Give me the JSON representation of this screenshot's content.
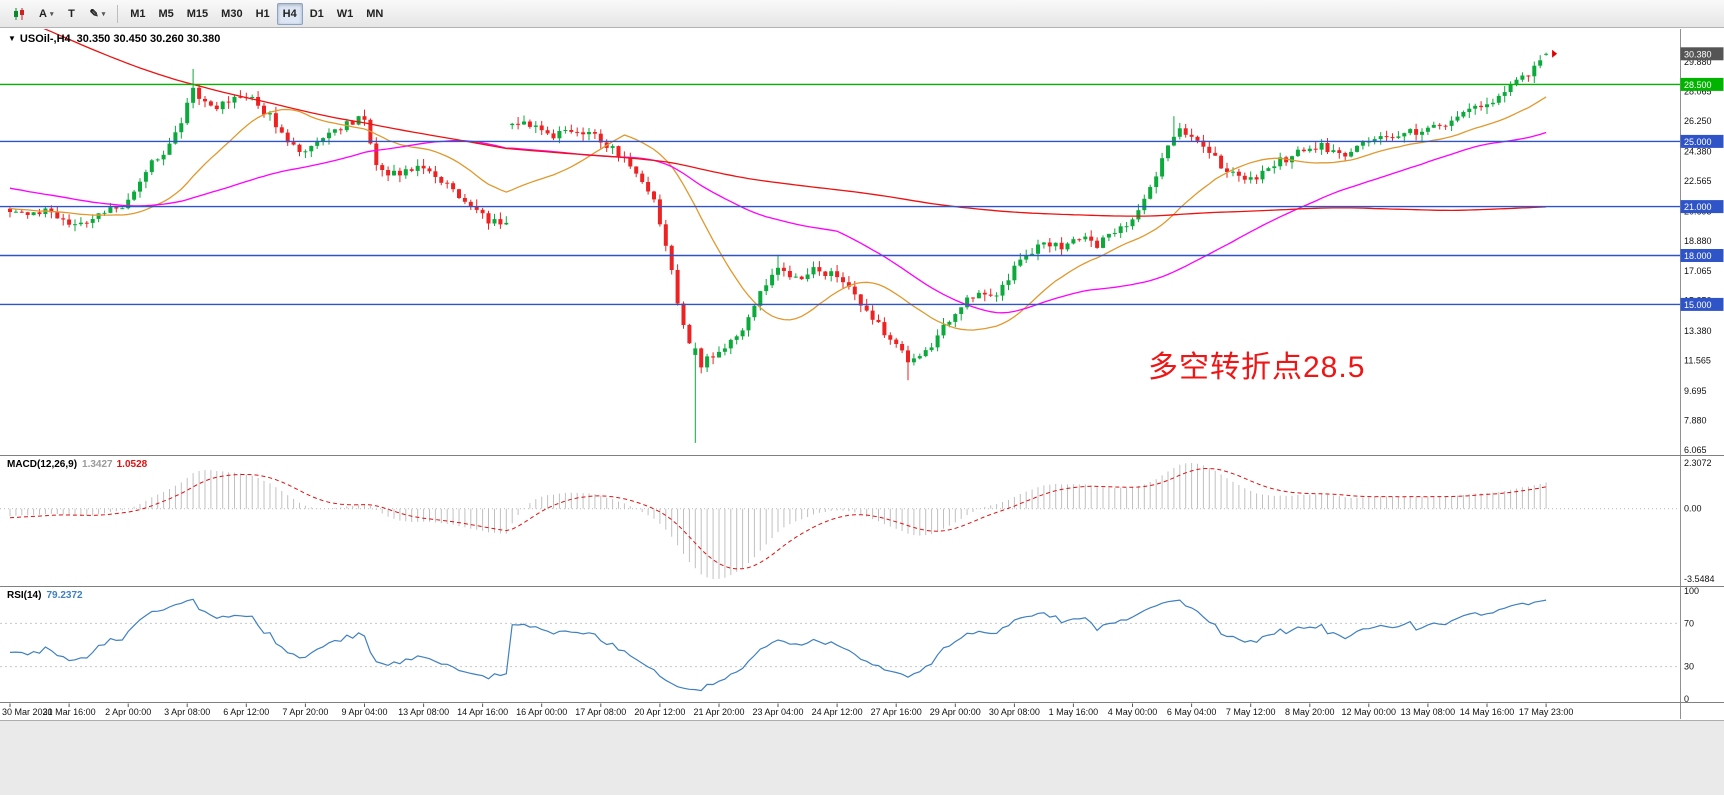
{
  "toolbar": {
    "tools": [
      {
        "name": "candlestick-chart",
        "glyph": "icon-candles",
        "caret": false
      },
      {
        "name": "text-label-tool",
        "glyph": "A",
        "caret": true
      },
      {
        "name": "text-tool",
        "glyph": "T",
        "caret": false
      },
      {
        "name": "drawing-tool",
        "glyph": "✎",
        "caret": true
      }
    ],
    "timeframes": [
      "M1",
      "M5",
      "M15",
      "M30",
      "H1",
      "H4",
      "D1",
      "W1",
      "MN"
    ],
    "active_timeframe": "H4"
  },
  "chart": {
    "collapse_marker": "▼",
    "title": "USOil-,H4",
    "ohlc": "30.350 30.450 30.260 30.380",
    "annotation": {
      "text": "多空转折点28.5",
      "color": "#f01414"
    }
  },
  "chart_data": {
    "type": "candlestick",
    "symbol": "USOil-",
    "timeframe": "H4",
    "bars": 261,
    "price_range": {
      "top": 31.9,
      "bottom": 5.76
    },
    "colors": {
      "up": "#0caa3c",
      "down": "#ee2222"
    },
    "h_lines": [
      {
        "price": 28.5,
        "color": "#00b400",
        "tag": "28.500"
      },
      {
        "price": 25.0,
        "color": "#2f54c8",
        "tag": "25.000"
      },
      {
        "price": 21.0,
        "color": "#2f54c8",
        "tag": "21.000"
      },
      {
        "price": 18.0,
        "color": "#2f54c8",
        "tag": "18.000"
      },
      {
        "price": 15.0,
        "color": "#2f54c8",
        "tag": "15.000"
      }
    ],
    "current_price_tag": {
      "text": "30.380",
      "price": 30.38,
      "color": "#555555"
    },
    "price_axis_labels": [
      "29.880",
      "28.065",
      "26.250",
      "24.380",
      "22.565",
      "20.695",
      "18.880",
      "17.065",
      "15.250",
      "13.380",
      "11.565",
      "9.695",
      "7.880",
      "6.065"
    ],
    "time_labels": [
      {
        "i": 0,
        "text": "30 Mar 2020"
      },
      {
        "i": 10,
        "text": "31 Mar 16:00"
      },
      {
        "i": 20,
        "text": "2 Apr 00:00"
      },
      {
        "i": 30,
        "text": "3 Apr 08:00"
      },
      {
        "i": 40,
        "text": "6 Apr 12:00"
      },
      {
        "i": 50,
        "text": "7 Apr 20:00"
      },
      {
        "i": 60,
        "text": "9 Apr 04:00"
      },
      {
        "i": 70,
        "text": "13 Apr 08:00"
      },
      {
        "i": 80,
        "text": "14 Apr 16:00"
      },
      {
        "i": 90,
        "text": "16 Apr 00:00"
      },
      {
        "i": 100,
        "text": "17 Apr 08:00"
      },
      {
        "i": 110,
        "text": "20 Apr 12:00"
      },
      {
        "i": 120,
        "text": "21 Apr 20:00"
      },
      {
        "i": 130,
        "text": "23 Apr 04:00"
      },
      {
        "i": 140,
        "text": "24 Apr 12:00"
      },
      {
        "i": 150,
        "text": "27 Apr 16:00"
      },
      {
        "i": 160,
        "text": "29 Apr 00:00"
      },
      {
        "i": 170,
        "text": "30 Apr 08:00"
      },
      {
        "i": 180,
        "text": "1 May 16:00"
      },
      {
        "i": 190,
        "text": "4 May 00:00"
      },
      {
        "i": 200,
        "text": "6 May 04:00"
      },
      {
        "i": 210,
        "text": "7 May 12:00"
      },
      {
        "i": 220,
        "text": "8 May 20:00"
      },
      {
        "i": 230,
        "text": "12 May 00:00"
      },
      {
        "i": 240,
        "text": "13 May 08:00"
      },
      {
        "i": 250,
        "text": "14 May 16:00"
      },
      {
        "i": 260,
        "text": "17 May 23:00"
      }
    ],
    "price_path": [
      [
        0,
        20.9
      ],
      [
        3,
        20.4
      ],
      [
        6,
        20.8
      ],
      [
        9,
        20.1
      ],
      [
        12,
        19.8
      ],
      [
        15,
        20.5
      ],
      [
        18,
        20.9
      ],
      [
        20,
        21.2
      ],
      [
        23,
        23.2
      ],
      [
        26,
        24.4
      ],
      [
        28,
        25.4
      ],
      [
        30,
        27.2
      ],
      [
        31,
        28.3
      ],
      [
        33,
        27.3
      ],
      [
        35,
        27.0
      ],
      [
        38,
        27.8
      ],
      [
        41,
        27.5
      ],
      [
        44,
        26.5
      ],
      [
        47,
        25.0
      ],
      [
        50,
        24.2
      ],
      [
        53,
        25.1
      ],
      [
        56,
        25.9
      ],
      [
        59,
        26.4
      ],
      [
        60,
        26.5
      ],
      [
        62,
        23.4
      ],
      [
        64,
        22.9
      ],
      [
        67,
        23.1
      ],
      [
        70,
        23.4
      ],
      [
        73,
        22.6
      ],
      [
        76,
        21.6
      ],
      [
        78,
        21.0
      ],
      [
        81,
        20.2
      ],
      [
        84,
        19.9
      ],
      [
        85,
        26.3
      ],
      [
        88,
        26.1
      ],
      [
        92,
        25.4
      ],
      [
        96,
        25.7
      ],
      [
        100,
        25.1
      ],
      [
        103,
        24.3
      ],
      [
        106,
        23.1
      ],
      [
        109,
        21.3
      ],
      [
        111,
        18.6
      ],
      [
        113,
        15.2
      ],
      [
        115,
        12.6
      ],
      [
        116,
        11.0
      ],
      [
        118,
        11.6
      ],
      [
        121,
        12.2
      ],
      [
        124,
        13.4
      ],
      [
        127,
        15.8
      ],
      [
        130,
        17.3
      ],
      [
        133,
        16.6
      ],
      [
        136,
        17.1
      ],
      [
        139,
        16.8
      ],
      [
        142,
        15.9
      ],
      [
        145,
        14.6
      ],
      [
        148,
        13.3
      ],
      [
        150,
        12.6
      ],
      [
        152,
        11.3
      ],
      [
        155,
        12.1
      ],
      [
        158,
        13.6
      ],
      [
        161,
        14.9
      ],
      [
        164,
        15.9
      ],
      [
        166,
        15.3
      ],
      [
        169,
        16.7
      ],
      [
        172,
        18.0
      ],
      [
        175,
        18.8
      ],
      [
        178,
        18.5
      ],
      [
        181,
        19.1
      ],
      [
        184,
        18.7
      ],
      [
        187,
        19.4
      ],
      [
        190,
        20.3
      ],
      [
        193,
        22.0
      ],
      [
        196,
        24.6
      ],
      [
        198,
        25.6
      ],
      [
        200,
        25.2
      ],
      [
        203,
        24.3
      ],
      [
        206,
        23.2
      ],
      [
        210,
        22.6
      ],
      [
        214,
        23.6
      ],
      [
        218,
        24.3
      ],
      [
        222,
        24.7
      ],
      [
        226,
        24.2
      ],
      [
        230,
        25.0
      ],
      [
        235,
        25.4
      ],
      [
        240,
        25.8
      ],
      [
        245,
        26.4
      ],
      [
        250,
        27.3
      ],
      [
        253,
        28.0
      ],
      [
        256,
        28.9
      ],
      [
        258,
        29.6
      ],
      [
        260,
        30.38
      ]
    ],
    "pre_path": [
      [
        -200,
        53
      ],
      [
        -185,
        50.5
      ],
      [
        -170,
        47
      ],
      [
        -155,
        43
      ],
      [
        -140,
        38.5
      ],
      [
        -125,
        34.5
      ],
      [
        -110,
        31.5
      ],
      [
        -95,
        29.5
      ],
      [
        -80,
        27.5
      ],
      [
        -65,
        25.5
      ],
      [
        -50,
        24
      ],
      [
        -38,
        23
      ],
      [
        -28,
        22
      ],
      [
        -18,
        21.2
      ],
      [
        -8,
        20.7
      ],
      [
        -1,
        20.7
      ]
    ],
    "overrides": [
      {
        "i": 31,
        "high": 29.45
      },
      {
        "i": 85,
        "open": 26.0
      },
      {
        "i": 116,
        "open": 11.9,
        "close": 12.3,
        "low": 6.5
      },
      {
        "i": 130,
        "high": 18.05
      },
      {
        "i": 152,
        "low": 10.35
      },
      {
        "i": 197,
        "high": 26.55
      },
      {
        "i": 260,
        "open": 30.35,
        "high": 30.45,
        "low": 30.26,
        "close": 30.38
      }
    ],
    "moving_averages": [
      {
        "name": "ma-fast",
        "period": 20,
        "color": "#e0992e"
      },
      {
        "name": "ma-mid",
        "period": 56,
        "color": "#ff00ff"
      },
      {
        "name": "ma-slow",
        "period": 200,
        "color": "#ee1111"
      }
    ],
    "indicators": {
      "macd": {
        "label": "MACD(12,26,9)",
        "value_main": "1.3427",
        "value_signal": "1.0528",
        "fast": 12,
        "slow": 26,
        "signal": 9,
        "axis_top": "2.3072",
        "axis_zero": "0.00",
        "axis_bottom": "-3.5484",
        "hist_color": "#c0c0c0",
        "signal_color": "#e01010"
      },
      "rsi": {
        "label": "RSI(14)",
        "value": "79.2372",
        "period": 14,
        "axis": [
          "100",
          "70",
          "30",
          "0"
        ],
        "levels": [
          70,
          30
        ],
        "color": "#3f80c0"
      }
    }
  }
}
